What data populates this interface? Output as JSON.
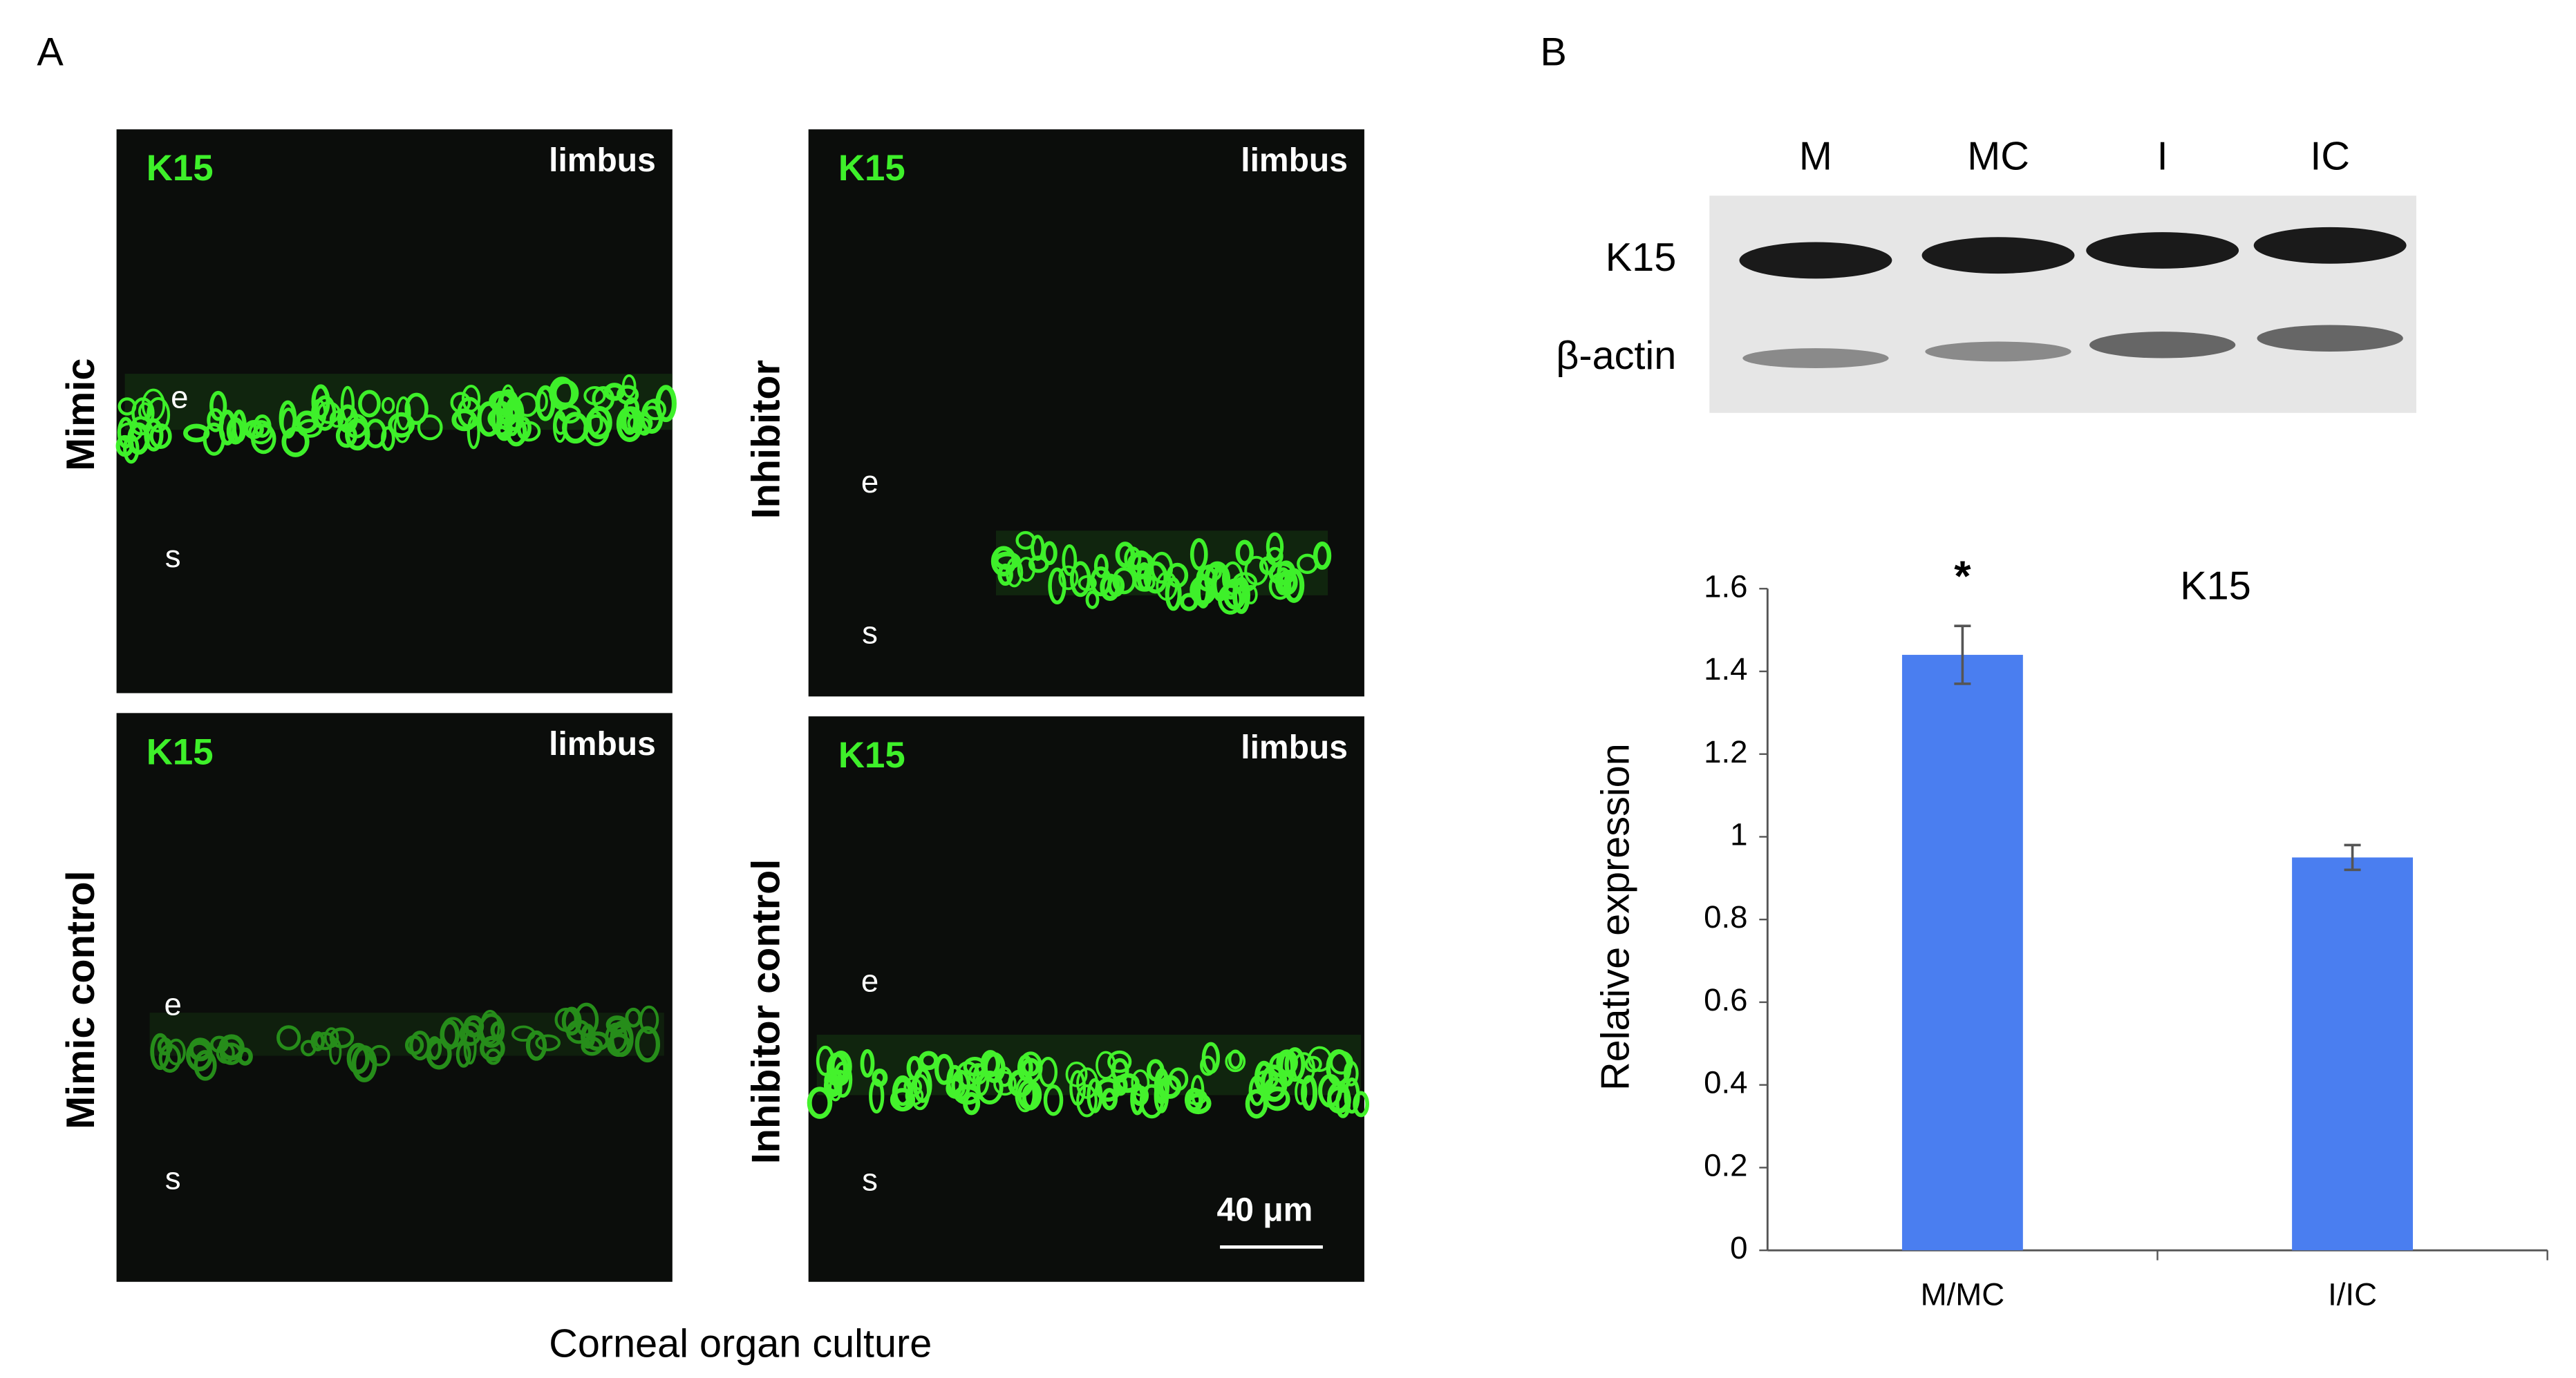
{
  "panel_a": {
    "label": "A",
    "images": [
      {
        "stain": "K15",
        "region": "limbus",
        "condition": "Mimic",
        "epithelium": "e",
        "stroma": "s"
      },
      {
        "stain": "K15",
        "region": "limbus",
        "condition": "Inhibitor",
        "epithelium": "e",
        "stroma": "s"
      },
      {
        "stain": "K15",
        "region": "limbus",
        "condition": "Mimic control",
        "epithelium": "e",
        "stroma": "s"
      },
      {
        "stain": "K15",
        "region": "limbus",
        "condition": "Inhibitor control",
        "epithelium": "e",
        "stroma": "s"
      }
    ],
    "scale_bar": "40 μm",
    "caption": "Corneal organ culture"
  },
  "panel_b": {
    "label": "B",
    "blot": {
      "lanes": [
        "M",
        "MC",
        "I",
        "IC"
      ],
      "rows": [
        "K15",
        "β-actin"
      ]
    }
  },
  "chart_data": {
    "type": "bar",
    "title": "K15",
    "y_label": "Relative expression",
    "categories": [
      "M/MC",
      "I/IC"
    ],
    "values": [
      1.44,
      0.95
    ],
    "errors": [
      0.07,
      0.03
    ],
    "significance": [
      "*",
      null
    ],
    "color": "#4a7ef0",
    "ylim": [
      0,
      1.6
    ],
    "yticks": [
      0,
      0.2,
      0.4,
      0.6,
      0.8,
      1,
      1.2,
      1.4,
      1.6
    ],
    "grid": false
  }
}
